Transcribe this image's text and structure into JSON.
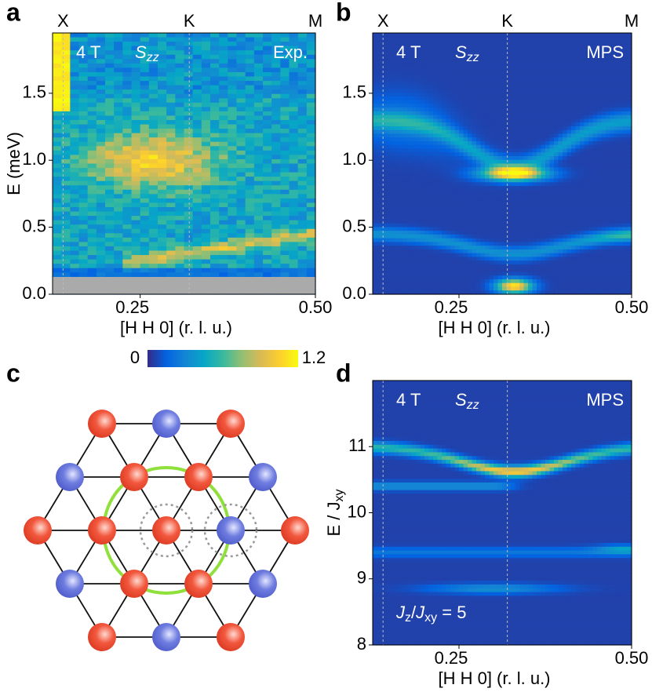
{
  "panels": {
    "a": {
      "letter": "a",
      "points": [
        {
          "label": "X",
          "x": 0.14
        },
        {
          "label": "K",
          "x": 0.32
        },
        {
          "label": "M",
          "x": 0.5
        }
      ],
      "field": "4 T",
      "component": "S",
      "component_sub": "zz",
      "source": "Exp.",
      "xlabel": "[H  H  0] (r. l. u.)",
      "ylabel": "E (meV)",
      "xlim": [
        0.125,
        0.5
      ],
      "ylim": [
        0,
        1.95
      ],
      "xticks": [
        0.25,
        {
          "value": 0.5,
          "label": "0.50"
        }
      ],
      "yticks": [
        {
          "value": 0,
          "label": "0.0"
        },
        0.5,
        {
          "value": 1,
          "label": "1.0"
        },
        1.5
      ]
    },
    "b": {
      "letter": "b",
      "points": [
        {
          "label": "X",
          "x": 0.14
        },
        {
          "label": "K",
          "x": 0.32
        },
        {
          "label": "M",
          "x": 0.5
        }
      ],
      "field": "4 T",
      "component": "S",
      "component_sub": "zz",
      "source": "MPS",
      "xlabel": "[H  H  0] (r. l. u.)",
      "xlim": [
        0.125,
        0.5
      ],
      "ylim": [
        0,
        1.95
      ],
      "xticks": [
        0.25,
        {
          "value": 0.5,
          "label": "0.50"
        }
      ],
      "yticks": [
        {
          "value": 0,
          "label": "0.0"
        },
        0.5,
        {
          "value": 1,
          "label": "1.0"
        },
        1.5
      ]
    },
    "c": {
      "letter": "c"
    },
    "d": {
      "letter": "d",
      "field": "4 T",
      "component": "S",
      "component_sub": "zz",
      "source": "MPS",
      "xlabel": "[H  H  0] (r. l. u.)",
      "ylabel": "E / J",
      "ylabel_sub": "xy",
      "ratio": {
        "num": "J",
        "num_sub": "z",
        "sep": "/",
        "den": "J",
        "den_sub": "xy",
        "value": " = 5"
      },
      "xlim": [
        0.125,
        0.5
      ],
      "ylim": [
        8,
        12
      ],
      "xticks": [
        0.25,
        {
          "value": 0.5,
          "label": "0.50"
        }
      ],
      "yticks": [
        8,
        9,
        10,
        11
      ]
    }
  },
  "colorbar": {
    "min": 0,
    "max": 1.2
  }
}
